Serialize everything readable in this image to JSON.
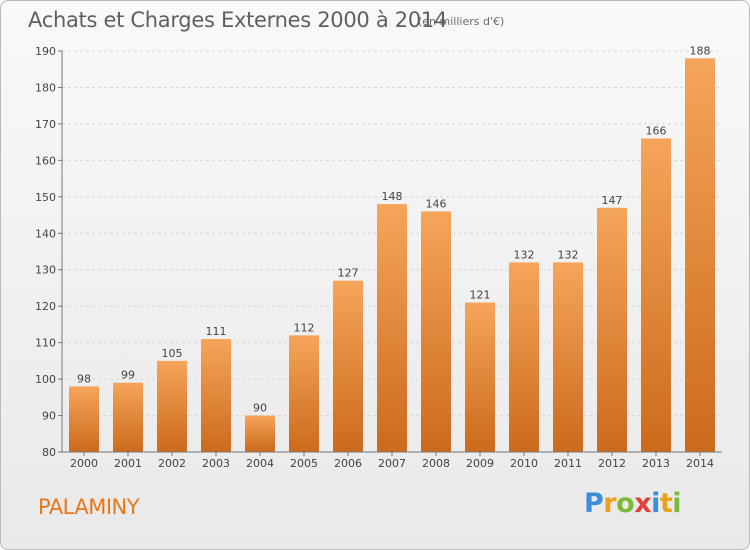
{
  "header": {
    "title": "Achats et Charges Externes 2000 à 2014",
    "subtitle": "(en milliers d'€)"
  },
  "footer": {
    "commune": "PALAMINY",
    "logo_letters": [
      "P",
      "r",
      "o",
      "x",
      "i",
      "t",
      "i"
    ],
    "logo_colors": [
      "#3b8ed8",
      "#e8a21c",
      "#7cb83a",
      "#e2403b",
      "#3b8ed8",
      "#e8a21c",
      "#7cb83a"
    ]
  },
  "chart_data": {
    "type": "bar",
    "categories": [
      "2000",
      "2001",
      "2002",
      "2003",
      "2004",
      "2005",
      "2006",
      "2007",
      "2008",
      "2009",
      "2010",
      "2011",
      "2012",
      "2013",
      "2014"
    ],
    "values": [
      98,
      99,
      105,
      111,
      90,
      112,
      127,
      148,
      146,
      121,
      132,
      132,
      147,
      166,
      188
    ],
    "ylim": [
      80,
      190
    ],
    "yticks": [
      80,
      90,
      100,
      110,
      120,
      130,
      140,
      150,
      160,
      170,
      180,
      190
    ],
    "grid": true,
    "bar_color_top": "#f5a55a",
    "bar_color_bottom": "#cc6a1c"
  }
}
